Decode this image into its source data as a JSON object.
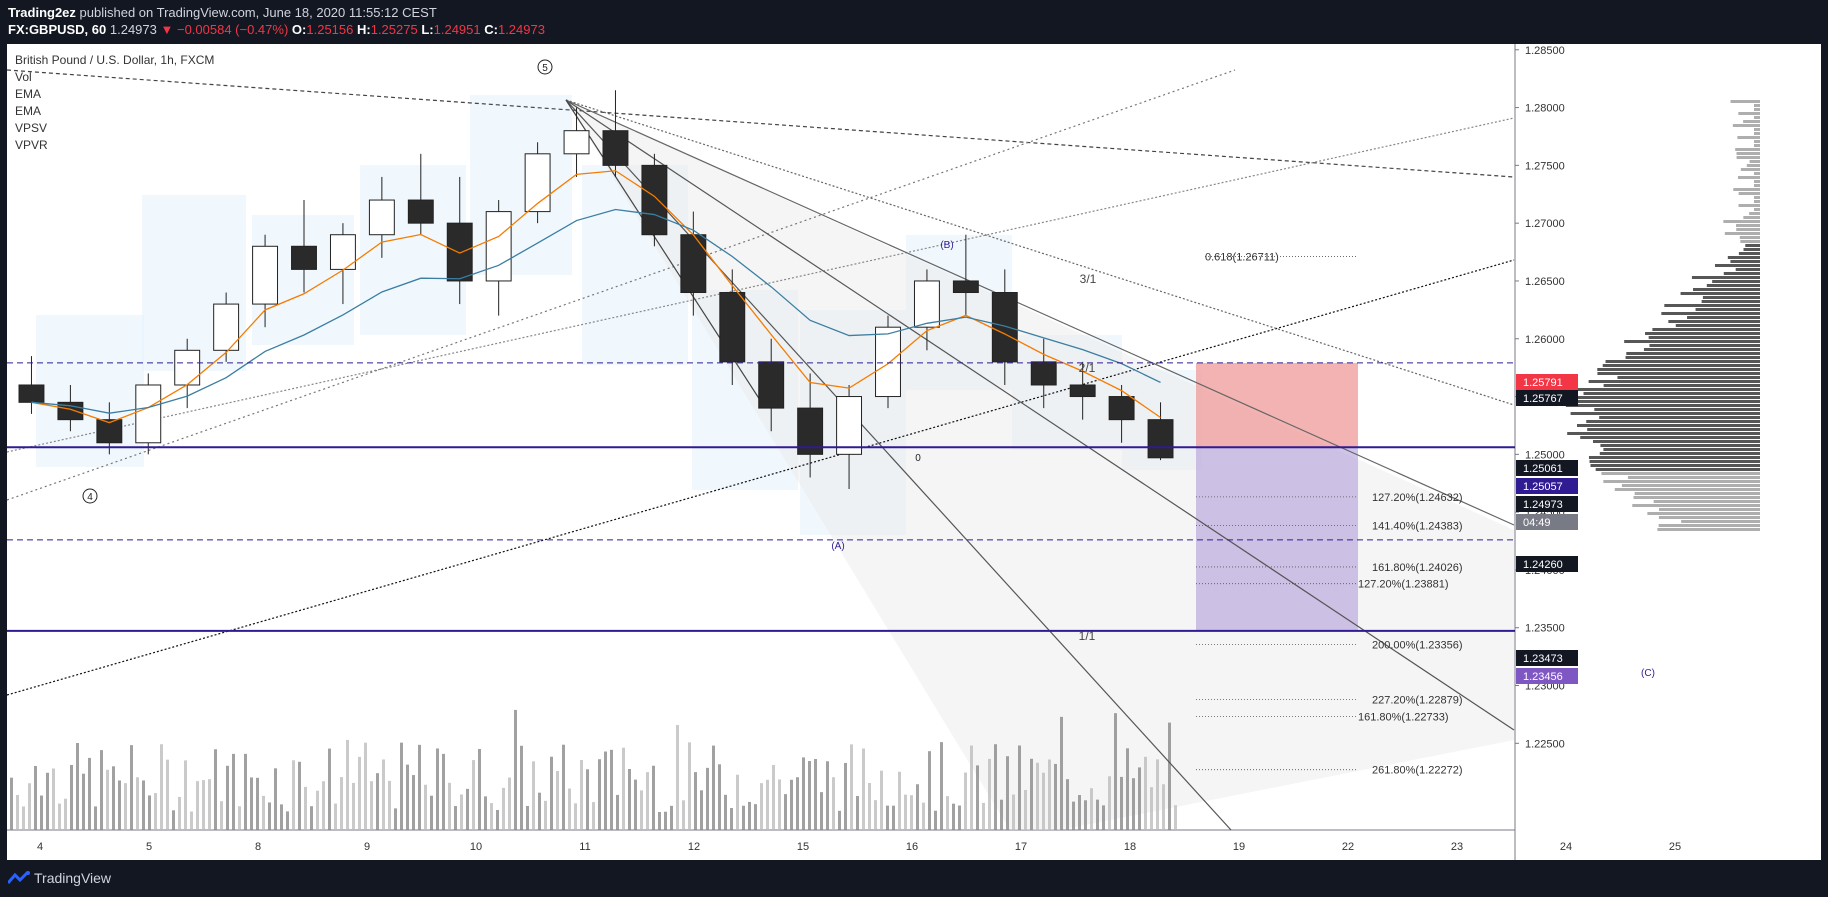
{
  "header": {
    "publisher": "Trading2ez",
    "published_text": " published on TradingView.com, June 18, 2020 11:55:12 CEST",
    "symbol": "FX:GBPUSD, 60",
    "last": "1.24973",
    "change": "▼ −0.00584 (−0.47%)",
    "o_label": "O:",
    "o": "1.25156",
    "h_label": "H:",
    "h": "1.25275",
    "l_label": "L:",
    "l": "1.24951",
    "c_label": "C:",
    "c": "1.24973"
  },
  "legend": {
    "title": "British Pound / U.S. Dollar, 1h, FXCM",
    "items": [
      "Vol",
      "EMA",
      "EMA",
      "VPSV",
      "VPVR"
    ]
  },
  "footer": {
    "brand": "TradingView"
  },
  "colors": {
    "up": "#8c8c8c",
    "down": "#2a2a2a",
    "ema_fast": "#f57c00",
    "ema_slow": "#3b7ea1",
    "level_line": "#311b92",
    "red_zone": "#ef9a9a",
    "purple_zone": "#b39ddb",
    "price_tag_dark": "#311b92",
    "price_tag_black": "#131722"
  },
  "chart_data": {
    "type": "candlestick",
    "ylim": [
      1.2175,
      1.2855
    ],
    "y_ticks": [
      "1.28500",
      "1.28000",
      "1.27500",
      "1.27000",
      "1.26500",
      "1.26000",
      "1.25500",
      "1.25000",
      "1.24500",
      "1.24000",
      "1.23500",
      "1.23000",
      "1.22500"
    ],
    "x_ticks": [
      "4",
      "5",
      "8",
      "9",
      "10",
      "11",
      "12",
      "15",
      "16",
      "17",
      "18",
      "19",
      "22",
      "23",
      "24",
      "25"
    ],
    "wave_labels": [
      "5",
      "4",
      "(A)",
      "(B)",
      "(C)",
      "0"
    ],
    "gann_labels": [
      "3/1",
      "2/1",
      "1/1"
    ],
    "price_tags": [
      {
        "value": "1.25791",
        "style": "red"
      },
      {
        "value": "1.25767",
        "style": "black"
      },
      {
        "value": "1.25061",
        "style": "black"
      },
      {
        "value": "1.25057",
        "style": "purple"
      },
      {
        "value": "1.24973",
        "style": "black"
      },
      {
        "value": "04:49",
        "style": "gray"
      },
      {
        "value": "1.24260",
        "style": "black"
      },
      {
        "value": "1.23473",
        "style": "black"
      },
      {
        "value": "1.23456",
        "style": "lavender"
      }
    ],
    "fib_levels": [
      {
        "label": "0.618(1.26711)",
        "price": 1.26711
      },
      {
        "label": "127.20%(1.24632)",
        "price": 1.24632
      },
      {
        "label": "141.40%(1.24383)",
        "price": 1.24383
      },
      {
        "label": "161.80%(1.24026)",
        "price": 1.24026
      },
      {
        "label": "127.20%(1.23881)",
        "price": 1.23881
      },
      {
        "label": "200.00%(1.23356)",
        "price": 1.23356
      },
      {
        "label": "227.20%(1.22879)",
        "price": 1.22879
      },
      {
        "label": "161.80%(1.22733)",
        "price": 1.22733
      },
      {
        "label": "261.80%(1.22272)",
        "price": 1.22272
      }
    ],
    "horizontal_levels": [
      1.25791,
      1.25061,
      1.2426,
      1.23473
    ],
    "candles_sampled": [
      [
        1.256,
        1.2585,
        1.2535,
        1.2545
      ],
      [
        1.2545,
        1.256,
        1.252,
        1.253
      ],
      [
        1.253,
        1.2545,
        1.25,
        1.251
      ],
      [
        1.251,
        1.257,
        1.25,
        1.256
      ],
      [
        1.256,
        1.26,
        1.254,
        1.259
      ],
      [
        1.259,
        1.264,
        1.258,
        1.263
      ],
      [
        1.263,
        1.269,
        1.261,
        1.268
      ],
      [
        1.268,
        1.272,
        1.264,
        1.266
      ],
      [
        1.266,
        1.27,
        1.263,
        1.269
      ],
      [
        1.269,
        1.274,
        1.267,
        1.272
      ],
      [
        1.272,
        1.276,
        1.269,
        1.27
      ],
      [
        1.27,
        1.274,
        1.263,
        1.265
      ],
      [
        1.265,
        1.272,
        1.262,
        1.271
      ],
      [
        1.271,
        1.277,
        1.27,
        1.276
      ],
      [
        1.276,
        1.28,
        1.274,
        1.278
      ],
      [
        1.278,
        1.2815,
        1.274,
        1.275
      ],
      [
        1.275,
        1.276,
        1.268,
        1.269
      ],
      [
        1.269,
        1.271,
        1.262,
        1.264
      ],
      [
        1.264,
        1.266,
        1.256,
        1.258
      ],
      [
        1.258,
        1.26,
        1.252,
        1.254
      ],
      [
        1.254,
        1.257,
        1.248,
        1.25
      ],
      [
        1.25,
        1.256,
        1.247,
        1.255
      ],
      [
        1.255,
        1.262,
        1.254,
        1.261
      ],
      [
        1.261,
        1.266,
        1.259,
        1.265
      ],
      [
        1.265,
        1.269,
        1.262,
        1.264
      ],
      [
        1.264,
        1.266,
        1.256,
        1.258
      ],
      [
        1.258,
        1.26,
        1.254,
        1.256
      ],
      [
        1.256,
        1.258,
        1.253,
        1.255
      ],
      [
        1.255,
        1.256,
        1.251,
        1.253
      ],
      [
        1.253,
        1.2545,
        1.2495,
        1.2497
      ]
    ]
  }
}
